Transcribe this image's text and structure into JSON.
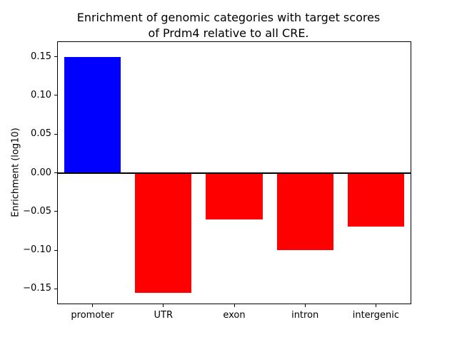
{
  "chart_data": {
    "type": "bar",
    "title_line1": "Enrichment of genomic categories with target scores",
    "title_line2": "of Prdm4 relative to all CRE.",
    "ylabel": "Enrichment (log10)",
    "xlabel": "",
    "categories": [
      "promoter",
      "UTR",
      "exon",
      "intron",
      "intergenic"
    ],
    "values": [
      0.15,
      -0.155,
      -0.06,
      -0.1,
      -0.07
    ],
    "bar_colors": [
      "#0000ff",
      "#ff0000",
      "#ff0000",
      "#ff0000",
      "#ff0000"
    ],
    "positive_color": "#0000ff",
    "negative_color": "#ff0000",
    "ylim": [
      -0.17,
      0.17
    ],
    "ytick_values": [
      0.15,
      0.1,
      0.05,
      0.0,
      -0.05,
      -0.1,
      -0.15
    ],
    "ytick_labels": [
      "0.15",
      "0.10",
      "0.05",
      "0.00",
      "−0.05",
      "−0.10",
      "−0.15"
    ],
    "grid": false,
    "legend": "none",
    "zero_line": true
  }
}
